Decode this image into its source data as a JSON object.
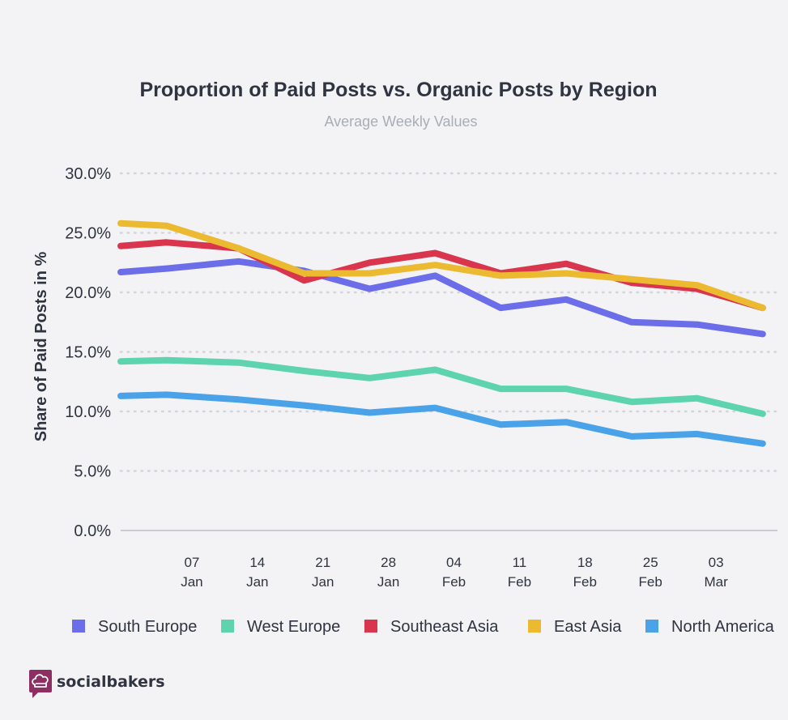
{
  "brand": {
    "name": "socialbakers",
    "logo_icon": "socialbakers-chef-hat-icon",
    "logo_color": "#8e2f63"
  },
  "chart_data": {
    "type": "line",
    "title": "Proportion of Paid Posts vs. Organic Posts by Region",
    "subtitle": "Average Weekly Values",
    "xlabel": "",
    "ylabel": "Share of Paid Posts in %",
    "ylim": [
      0,
      30
    ],
    "y_ticks": [
      "30.0%",
      "25.0%",
      "20.0%",
      "15.0%",
      "10.0%",
      "5.0%",
      "0.0%"
    ],
    "y_tick_values": [
      30,
      25,
      20,
      15,
      10,
      5,
      0
    ],
    "grid": true,
    "legend_position": "bottom",
    "x_ticks": [
      {
        "x": 1,
        "line1": "07",
        "line2": "Jan"
      },
      {
        "x": 2,
        "line1": "14",
        "line2": "Jan"
      },
      {
        "x": 3,
        "line1": "21",
        "line2": "Jan"
      },
      {
        "x": 4,
        "line1": "28",
        "line2": "Jan"
      },
      {
        "x": 5,
        "line1": "04",
        "line2": "Feb"
      },
      {
        "x": 6,
        "line1": "11",
        "line2": "Feb"
      },
      {
        "x": 7,
        "line1": "18",
        "line2": "Feb"
      },
      {
        "x": 8,
        "line1": "25",
        "line2": "Feb"
      },
      {
        "x": 9,
        "line1": "03",
        "line2": "Mar"
      }
    ],
    "x": [
      0,
      0.7,
      1.8,
      2.8,
      3.8,
      4.8,
      5.8,
      6.8,
      7.8,
      8.8,
      9.8
    ],
    "xlim": [
      0,
      10
    ],
    "series": [
      {
        "name": "North America",
        "color": "#4aa3e8",
        "values": [
          11.3,
          11.4,
          11.0,
          10.5,
          9.9,
          10.3,
          8.9,
          9.1,
          7.9,
          8.1,
          7.3
        ]
      },
      {
        "name": "West Europe",
        "color": "#5dd4ad",
        "values": [
          14.2,
          14.3,
          14.1,
          13.4,
          12.8,
          13.5,
          11.9,
          11.9,
          10.8,
          11.1,
          9.8
        ]
      },
      {
        "name": "South Europe",
        "color": "#6b6ee8",
        "values": [
          21.7,
          22.0,
          22.6,
          21.8,
          20.3,
          21.4,
          18.7,
          19.4,
          17.5,
          17.3,
          16.5
        ]
      },
      {
        "name": "Southeast Asia",
        "color": "#d9364e",
        "values": [
          23.9,
          24.2,
          23.7,
          21.0,
          22.5,
          23.3,
          21.6,
          22.4,
          20.8,
          20.3,
          18.7
        ]
      },
      {
        "name": "East Asia",
        "color": "#ecba30",
        "values": [
          25.8,
          25.6,
          23.7,
          21.6,
          21.6,
          22.3,
          21.4,
          21.6,
          21.1,
          20.6,
          18.7
        ]
      }
    ],
    "legend": [
      {
        "name": "South Europe",
        "color": "#6b6ee8"
      },
      {
        "name": "West Europe",
        "color": "#5dd4ad"
      },
      {
        "name": "Southeast Asia",
        "color": "#d9364e"
      },
      {
        "name": "East Asia",
        "color": "#ecba30"
      },
      {
        "name": "North America",
        "color": "#4aa3e8"
      }
    ]
  }
}
